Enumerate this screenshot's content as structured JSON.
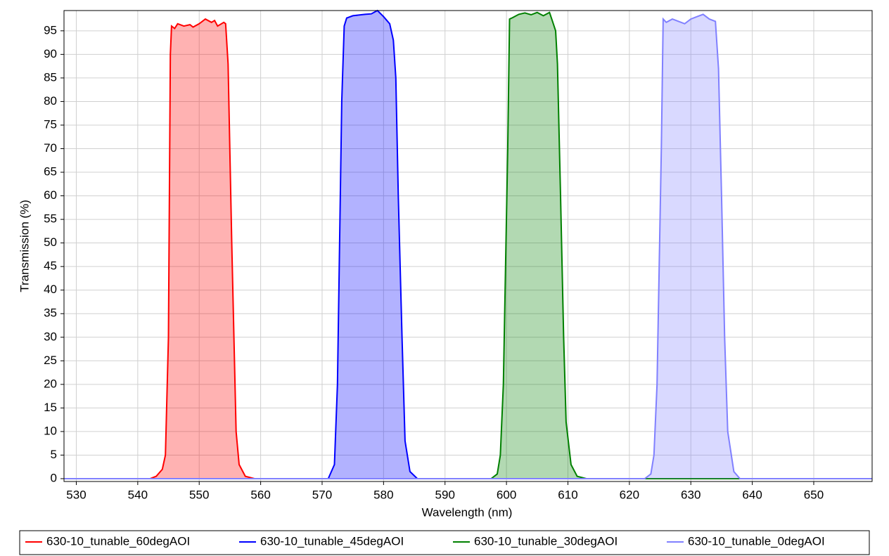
{
  "chart_data": {
    "type": "line",
    "x_label": "Wavelength (nm)",
    "y_label": "Transmission (%)",
    "xlim": [
      528,
      659.5
    ],
    "ylim": [
      -0.6,
      99.3
    ],
    "xticks": [
      530,
      540,
      550,
      560,
      570,
      580,
      590,
      600,
      610,
      620,
      630,
      640,
      650
    ],
    "yticks": [
      0,
      5,
      10,
      15,
      20,
      25,
      30,
      35,
      40,
      45,
      50,
      55,
      60,
      65,
      70,
      75,
      80,
      85,
      90,
      95
    ],
    "grid": true,
    "legend": "bottom",
    "series": [
      {
        "name": "630-10_tunable_60degAOI",
        "color": "#ff0000",
        "x": [
          528,
          542,
          543,
          544,
          544.5,
          545,
          545.3,
          545.5,
          546,
          546.5,
          547.5,
          548.5,
          549,
          550,
          551,
          552,
          552.5,
          553,
          554,
          554.3,
          554.7,
          555.3,
          556,
          556.5,
          557.5,
          559,
          659.5
        ],
        "values": [
          0,
          0,
          0.5,
          2,
          5,
          30,
          90,
          96,
          95.5,
          96.5,
          96,
          96.3,
          95.8,
          96.5,
          97.5,
          96.8,
          97.2,
          96,
          96.8,
          96.5,
          88,
          50,
          10,
          3,
          0.5,
          0,
          0
        ]
      },
      {
        "name": "630-10_tunable_45degAOI",
        "color": "#0000ff",
        "x": [
          528,
          571,
          572,
          572.5,
          573.2,
          573.6,
          574,
          575,
          577,
          578,
          579,
          580,
          581,
          581.6,
          582,
          582.4,
          583,
          583.5,
          584.3,
          585.5,
          659.5
        ],
        "values": [
          0,
          0,
          3,
          20,
          80,
          96,
          97.7,
          98.2,
          98.5,
          98.6,
          99.3,
          98,
          96.5,
          93,
          85,
          60,
          30,
          8,
          1.5,
          0,
          0
        ]
      },
      {
        "name": "630-10_tunable_30degAOI",
        "color": "#008000",
        "x": [
          528,
          597.5,
          598.5,
          599,
          599.5,
          600.2,
          600.5,
          601,
          602,
          603,
          604,
          605,
          606,
          607,
          607.5,
          608,
          608.3,
          608.8,
          609.3,
          609.7,
          610.5,
          611.5,
          613,
          659.5
        ],
        "values": [
          0,
          0,
          1,
          5,
          20,
          70,
          97.5,
          97.8,
          98.5,
          98.8,
          98.4,
          98.9,
          98.2,
          98.9,
          97,
          95,
          88,
          60,
          30,
          12,
          3,
          0.5,
          0,
          0
        ]
      },
      {
        "name": "630-10_tunable_0degAOI",
        "color": "#8080ff",
        "x": [
          528,
          622.5,
          623.5,
          624,
          624.5,
          625.2,
          625.5,
          626,
          627,
          628,
          629,
          630,
          631,
          632,
          633,
          634,
          634.5,
          635,
          635.5,
          636,
          637,
          638,
          659.5
        ],
        "values": [
          0,
          0,
          1,
          5,
          20,
          70,
          97.5,
          96.8,
          97.5,
          97,
          96.5,
          97.5,
          98,
          98.5,
          97.5,
          97,
          87,
          60,
          30,
          10,
          1.5,
          0,
          0
        ]
      }
    ]
  }
}
